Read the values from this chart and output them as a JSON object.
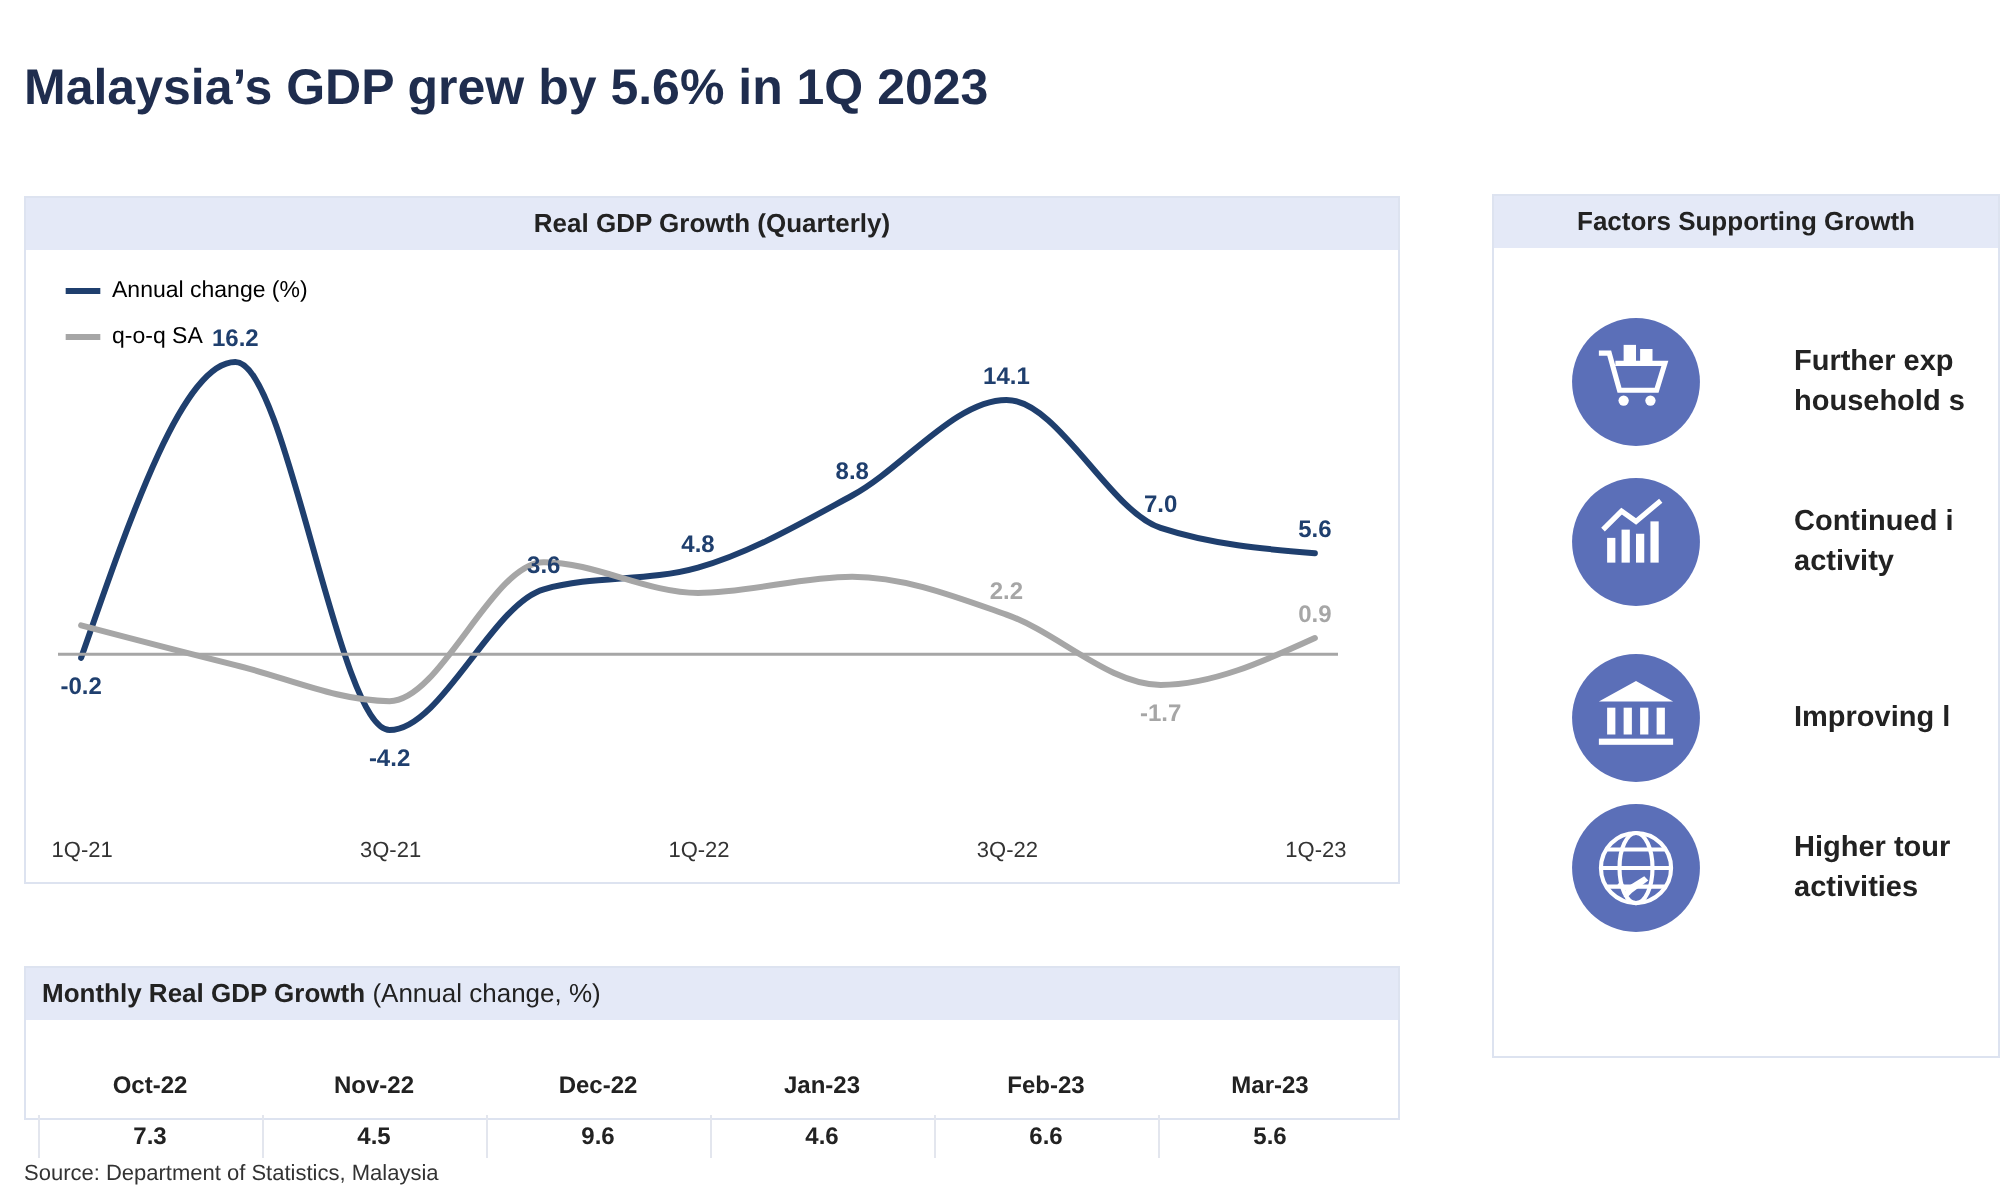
{
  "chart_data": [
    {
      "type": "line",
      "title": "Malaysia’s GDP grew by 5.6% in 1Q 2023",
      "subtitle": "Real GDP Growth (Quarterly)",
      "categories": [
        "1Q-21",
        null,
        "3Q-21",
        null,
        "1Q-22",
        null,
        "3Q-22",
        null,
        "1Q-23"
      ],
      "series": [
        {
          "name": "Annual change (%)",
          "color": "#1f3f6e",
          "values": [
            -0.2,
            16.2,
            -4.2,
            3.6,
            4.8,
            8.8,
            14.1,
            7.0,
            5.6
          ],
          "value_labels": [
            "-0.2",
            "16.2",
            "-4.2",
            "3.6",
            "4.8",
            "8.8",
            "14.1",
            "7.0",
            "5.6"
          ]
        },
        {
          "name": "q-o-q SA",
          "color": "#a6a6a6",
          "values": [
            1.6,
            -0.6,
            -2.6,
            5.1,
            3.4,
            4.3,
            2.2,
            -1.7,
            0.9
          ],
          "value_labels": [
            null,
            null,
            null,
            null,
            null,
            null,
            "2.2",
            "-1.7",
            "0.9"
          ]
        }
      ],
      "legend": "top left",
      "ref_lines": [
        {
          "axis": "y",
          "value": 0,
          "color": "#a6a6a6"
        }
      ],
      "annotations": [
        "Source: Department of Statistics, Malaysia"
      ]
    },
    {
      "type": "other",
      "title": "Monthly Real GDP Growth",
      "subtitle": "(Annual change, %)",
      "categories": [
        "Oct-22",
        "Nov-22",
        "Dec-22",
        "Jan-23",
        "Feb-23",
        "Mar-23"
      ],
      "values": [
        7.3,
        4.5,
        9.6,
        4.6,
        6.6,
        5.6
      ],
      "data_labels": true
    },
    {
      "type": "other",
      "title": "Factors Supporting Growth",
      "annotations": [
        "Further exp",
        "household s",
        "Continued i",
        "activity",
        "Improving l",
        "Higher tour",
        "activities"
      ]
    }
  ]
}
